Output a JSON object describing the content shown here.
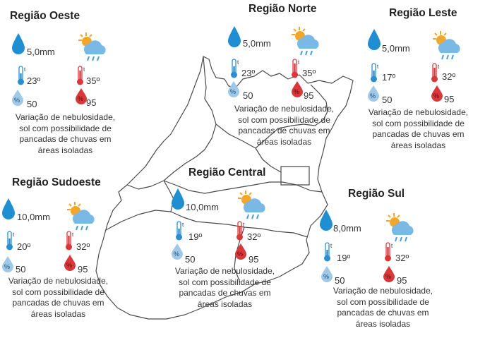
{
  "colors": {
    "drop": "#1f8fd2",
    "hot": "#d8383a",
    "cold": "#2a8fd0",
    "humidity_low": "#9fc9e6",
    "humidity_high": "#d8383a",
    "sun": "#f2a62b",
    "cloud": "#7ab9e6",
    "rain": "#4f9fd6",
    "map_line": "#4a4a4a"
  },
  "icons": {
    "rain": "water-drop-icon",
    "weather": "sun-cloud-rain-icon",
    "temp_min": "thermometer-cold-icon",
    "temp_max": "thermometer-hot-icon",
    "hum_min": "humidity-low-icon",
    "hum_max": "humidity-high-icon"
  },
  "regions": {
    "oeste": {
      "title": "Região Oeste",
      "rain": "5,0mm",
      "tmin": "23º",
      "tmax": "35º",
      "hmin": "50",
      "hmax": "95",
      "desc": [
        "Variação de nebulosidade,",
        "sol com possibilidade de",
        "pancadas de chuvas em",
        "áreas isoladas"
      ]
    },
    "norte": {
      "title": "Região Norte",
      "rain": "5,0mm",
      "tmin": "23º",
      "tmax": "35º",
      "hmin": "50",
      "hmax": "95",
      "desc": [
        "Variação de nebulosidade,",
        "sol com possibilidade de",
        "pancadas de chuvas em",
        "áreas isoladas"
      ]
    },
    "leste": {
      "title": "Região Leste",
      "rain": "5,0mm",
      "tmin": "17º",
      "tmax": "32º",
      "hmin": "50",
      "hmax": "95",
      "desc": [
        "Variação de nebulosidade,",
        "sol com possibilidade de",
        "pancadas de chuvas em",
        "áreas isoladas"
      ]
    },
    "sudoeste": {
      "title": "Região Sudoeste",
      "rain": "10,0mm",
      "tmin": "20º",
      "tmax": "32º",
      "hmin": "50",
      "hmax": "95",
      "desc": [
        "Variação de nebulosidade,",
        "sol com possibilidade de",
        "pancadas de chuvas em",
        "áreas isoladas"
      ]
    },
    "central": {
      "title": "Região Central",
      "rain": "10,0mm",
      "tmin": "19º",
      "tmax": "32º",
      "hmin": "50",
      "hmax": "95",
      "desc": [
        "Variação de nebulosidade,",
        "sol com possibilidade de",
        "pancadas de chuvas em",
        "áreas isoladas"
      ]
    },
    "sul": {
      "title": "Região Sul",
      "rain": "8,0mm",
      "tmin": "19º",
      "tmax": "32º",
      "hmin": "50",
      "hmax": "95",
      "desc": [
        "Variação de nebulosidade,",
        "sol com possibilidade de",
        "pancadas de chuvas em",
        "áreas isoladas"
      ]
    }
  }
}
